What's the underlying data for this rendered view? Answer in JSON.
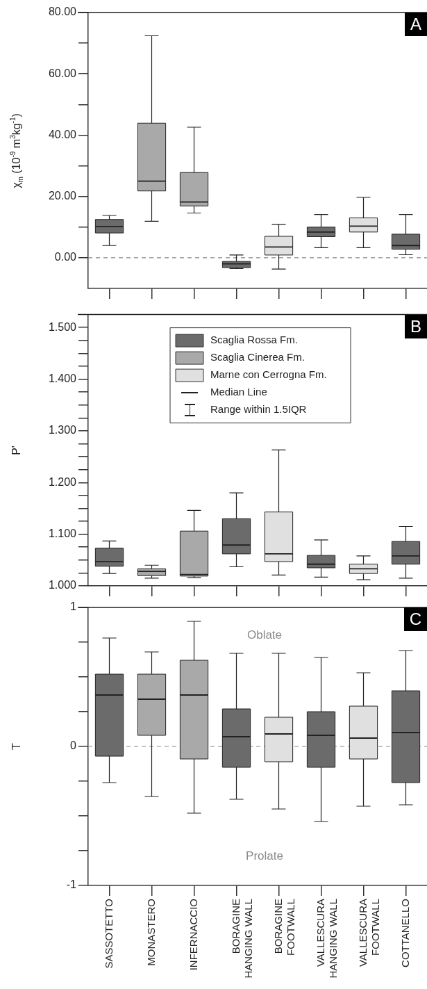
{
  "chart_data": [
    {
      "type": "box",
      "title": "A",
      "ylabel": "χ$_{m}$ (10$^{-9}$ m$^{3}$kg$^{-1}$)",
      "tick_labels": "y",
      "categories": [
        null,
        null,
        null,
        null,
        null,
        null,
        null,
        null
      ],
      "series": [
        {
          "color": "#6b6b6b",
          "boxes": [
            {
              "low": 4.0,
              "q1": 8.1,
              "median": 10.2,
              "q3": 12.5,
              "high": 13.8
            },
            null,
            null,
            {
              "low": -3.5,
              "q1": -3.2,
              "median": -2.0,
              "q3": -1.2,
              "high": 0.9
            },
            null,
            {
              "low": 3.3,
              "q1": 6.9,
              "median": 8.4,
              "q3": 10.0,
              "high": 14.1
            },
            null,
            {
              "low": 1.0,
              "q1": 2.8,
              "median": 4.0,
              "q3": 7.7,
              "high": 14.1
            }
          ]
        },
        {
          "color": "#a9a9a9",
          "boxes": [
            null,
            {
              "low": 11.9,
              "q1": 21.8,
              "median": 25.0,
              "q3": 43.9,
              "high": 72.4
            },
            {
              "low": 14.6,
              "q1": 16.9,
              "median": 18.2,
              "q3": 27.8,
              "high": 42.6
            },
            null,
            null,
            null,
            null,
            null
          ]
        },
        {
          "color": "#e0e0e0",
          "boxes": [
            null,
            null,
            null,
            null,
            {
              "low": -3.7,
              "q1": 0.9,
              "median": 3.5,
              "q3": 7.0,
              "high": 10.9
            },
            null,
            {
              "low": 3.3,
              "q1": 8.4,
              "median": 10.3,
              "q3": 13.0,
              "high": 19.7
            },
            null
          ]
        }
      ],
      "ylim": [
        -10,
        80
      ],
      "yticks": [
        {
          "value": 0,
          "label": "0.00"
        },
        {
          "value": 10,
          "label": null
        },
        {
          "value": 20,
          "label": "20.00"
        },
        {
          "value": 30,
          "label": null
        },
        {
          "value": 40,
          "label": "40.00"
        },
        {
          "value": 50,
          "label": null
        },
        {
          "value": 60,
          "label": "60.00"
        },
        {
          "value": 70,
          "label": null
        },
        {
          "value": 80,
          "label": "80.00"
        }
      ],
      "ref_lines": [
        {
          "axis": "y",
          "value": 0,
          "color": "#888888",
          "line_style": "dashed"
        }
      ]
    },
    {
      "type": "box",
      "title": "B",
      "ylabel": "P'",
      "tick_labels": "y",
      "legend": "top",
      "categories": [
        null,
        null,
        null,
        null,
        null,
        null,
        null,
        null
      ],
      "series": [
        {
          "name": "Scaglia Rossa Fm.",
          "color": "#6b6b6b",
          "boxes": [
            {
              "low": 1.024,
              "q1": 1.038,
              "median": 1.047,
              "q3": 1.073,
              "high": 1.087
            },
            null,
            null,
            {
              "low": 1.037,
              "q1": 1.062,
              "median": 1.079,
              "q3": 1.13,
              "high": 1.18
            },
            null,
            {
              "low": 1.017,
              "q1": 1.035,
              "median": 1.042,
              "q3": 1.059,
              "high": 1.089
            },
            null,
            {
              "low": 1.015,
              "q1": 1.042,
              "median": 1.058,
              "q3": 1.086,
              "high": 1.115
            }
          ]
        },
        {
          "name": "Scaglia Cinerea Fm.",
          "color": "#a9a9a9",
          "boxes": [
            null,
            {
              "low": 1.015,
              "q1": 1.02,
              "median": 1.028,
              "q3": 1.033,
              "high": 1.04
            },
            {
              "low": 1.016,
              "q1": 1.019,
              "median": 1.022,
              "q3": 1.106,
              "high": 1.146
            },
            null,
            null,
            null,
            null,
            null
          ]
        },
        {
          "name": "Marne con Cerrogna Fm.",
          "color": "#e0e0e0",
          "boxes": [
            null,
            null,
            null,
            null,
            {
              "low": 1.021,
              "q1": 1.047,
              "median": 1.062,
              "q3": 1.143,
              "high": 1.263
            },
            null,
            {
              "low": 1.012,
              "q1": 1.024,
              "median": 1.033,
              "q3": 1.042,
              "high": 1.058
            },
            null
          ]
        }
      ],
      "ylim": [
        1.0,
        1.525
      ],
      "yticks": [
        {
          "value": 1.0,
          "label": "1.000"
        },
        {
          "value": 1.025,
          "label": null
        },
        {
          "value": 1.05,
          "label": null
        },
        {
          "value": 1.075,
          "label": null
        },
        {
          "value": 1.1,
          "label": "1.100"
        },
        {
          "value": 1.125,
          "label": null
        },
        {
          "value": 1.15,
          "label": null
        },
        {
          "value": 1.175,
          "label": null
        },
        {
          "value": 1.2,
          "label": "1.200"
        },
        {
          "value": 1.225,
          "label": null
        },
        {
          "value": 1.25,
          "label": null
        },
        {
          "value": 1.275,
          "label": null
        },
        {
          "value": 1.3,
          "label": "1.300"
        },
        {
          "value": 1.325,
          "label": null
        },
        {
          "value": 1.35,
          "label": null
        },
        {
          "value": 1.375,
          "label": null
        },
        {
          "value": 1.4,
          "label": "1.400"
        },
        {
          "value": 1.425,
          "label": null
        },
        {
          "value": 1.45,
          "label": null
        },
        {
          "value": 1.475,
          "label": null
        },
        {
          "value": 1.5,
          "label": "1.500"
        }
      ],
      "annotations": [
        "Median Line",
        "Range within 1.5IQR"
      ]
    },
    {
      "type": "box",
      "title": "C",
      "ylabel": "T",
      "categories": [
        "SASSOTETTO",
        "MONASTERO",
        "INFERNACCIO",
        "BORAGINE HANGING WALL",
        "BORAGINE FOOTWALL",
        "VALLESCURA HANGING WALL",
        "VALLESCURA FOOTWALL",
        "COTTANELLO"
      ],
      "series": [
        {
          "color": "#6b6b6b",
          "boxes": [
            {
              "low": -0.26,
              "q1": -0.07,
              "median": 0.37,
              "q3": 0.52,
              "high": 0.78
            },
            null,
            null,
            {
              "low": -0.38,
              "q1": -0.15,
              "median": 0.07,
              "q3": 0.27,
              "high": 0.67
            },
            null,
            {
              "low": -0.54,
              "q1": -0.15,
              "median": 0.08,
              "q3": 0.25,
              "high": 0.64
            },
            null,
            {
              "low": -0.42,
              "q1": -0.26,
              "median": 0.1,
              "q3": 0.4,
              "high": 0.69
            }
          ]
        },
        {
          "color": "#a9a9a9",
          "boxes": [
            null,
            {
              "low": -0.36,
              "q1": 0.08,
              "median": 0.34,
              "q3": 0.52,
              "high": 0.68
            },
            {
              "low": -0.48,
              "q1": -0.09,
              "median": 0.37,
              "q3": 0.62,
              "high": 0.9
            },
            null,
            null,
            null,
            null,
            null
          ]
        },
        {
          "color": "#e0e0e0",
          "boxes": [
            null,
            null,
            null,
            null,
            {
              "low": -0.45,
              "q1": -0.11,
              "median": 0.09,
              "q3": 0.21,
              "high": 0.67
            },
            null,
            {
              "low": -0.43,
              "q1": -0.09,
              "median": 0.06,
              "q3": 0.29,
              "high": 0.53
            },
            null
          ]
        }
      ],
      "ylim": [
        -1,
        1
      ],
      "yticks": [
        -1,
        {
          "value": -0.75,
          "label": null
        },
        {
          "value": -0.5,
          "label": null
        },
        {
          "value": -0.25,
          "label": null
        },
        0,
        {
          "value": 0.25,
          "label": null
        },
        {
          "value": 0.5,
          "label": null
        },
        {
          "value": 0.75,
          "label": null
        },
        1
      ],
      "ref_lines": [
        {
          "axis": "y",
          "value": 0,
          "color": "#888888",
          "line_style": "dashed"
        }
      ],
      "annotations": [
        "Oblate",
        "Prolate"
      ]
    }
  ]
}
